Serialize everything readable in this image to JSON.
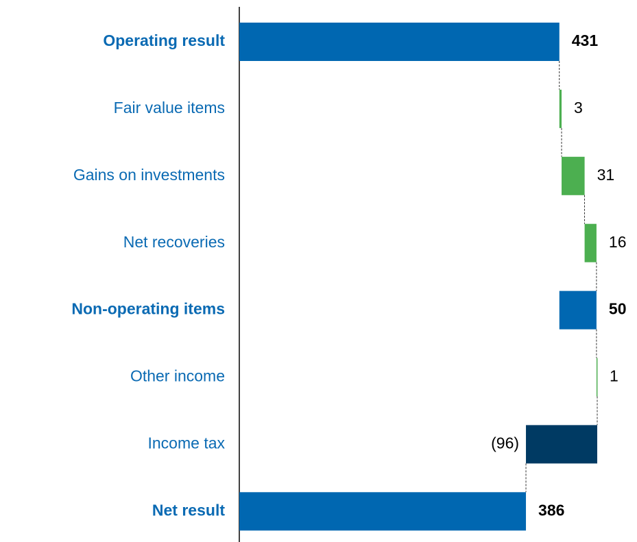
{
  "chart_data": {
    "type": "waterfall",
    "categories": [
      "Operating result",
      "Fair value items",
      "Gains on investments",
      "Net recoveries",
      "Non-operating items",
      "Other income",
      "Income tax",
      "Net result"
    ],
    "values": [
      431,
      3,
      31,
      16,
      50,
      1,
      -96,
      386
    ],
    "value_labels": [
      "431",
      "3",
      "31",
      "16",
      "50",
      "1",
      "(96)",
      "386"
    ],
    "measures": [
      "total",
      "increase",
      "increase",
      "increase",
      "subtotal",
      "increase",
      "decrease",
      "total"
    ],
    "colors": {
      "total": "#0067b1",
      "subtotal": "#0067b1",
      "increase": "#4caf50",
      "decrease": "#003a63"
    }
  }
}
